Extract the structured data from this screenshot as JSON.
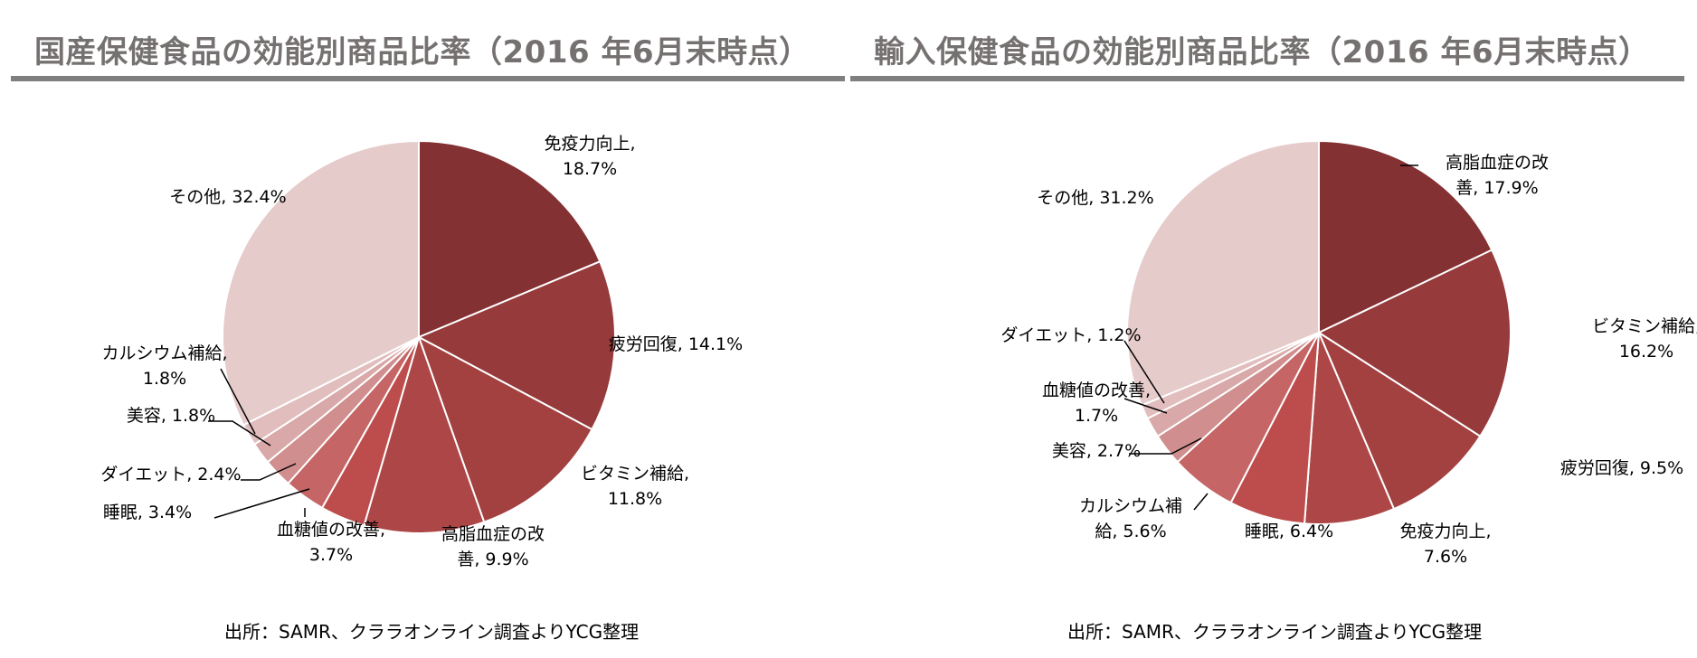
{
  "chart_data": [
    {
      "type": "pie",
      "title": "国産保健食品の効能別商品比率（2016 年6月末時点）",
      "source": "出所：SAMR、クララオンライン調査よりYCG整理",
      "slices": [
        {
          "name": "免疫力向上",
          "value": 18.7,
          "label": [
            "免疫力向上,",
            "18.7%"
          ],
          "color": "#843134"
        },
        {
          "name": "疲労回復",
          "value": 14.1,
          "label": [
            "疲労回復, 14.1%"
          ],
          "color": "#963a3b"
        },
        {
          "name": "ビタミン補給",
          "value": 11.8,
          "label": [
            "ビタミン補給,",
            "11.8%"
          ],
          "color": "#a34040"
        },
        {
          "name": "高脂血症の改善",
          "value": 9.9,
          "label": [
            "高脂血症の改",
            "善, 9.9%"
          ],
          "color": "#ad4646"
        },
        {
          "name": "血糖値の改善",
          "value": 3.7,
          "label": [
            "血糖値の改善,",
            "3.7%"
          ],
          "color": "#bd4d4d"
        },
        {
          "name": "睡眠",
          "value": 3.4,
          "label": [
            "睡眠, 3.4%"
          ],
          "color": "#c56565"
        },
        {
          "name": "ダイエット",
          "value": 2.4,
          "label": [
            "ダイエット, 2.4%"
          ],
          "color": "#d08e8e"
        },
        {
          "name": "美容",
          "value": 1.8,
          "label": [
            "美容, 1.8%"
          ],
          "color": "#d9a8a8"
        },
        {
          "name": "カルシウム補給",
          "value": 1.8,
          "label": [
            "カルシウム補給,",
            "1.8%"
          ],
          "color": "#e2bdbd"
        },
        {
          "name": "その他",
          "value": 32.4,
          "label": [
            "その他, 32.4%"
          ],
          "color": "#e6cbcb"
        }
      ]
    },
    {
      "type": "pie",
      "title": "輸入保健食品の効能別商品比率（2016 年6月末時点）",
      "source": "出所：SAMR、クララオンライン調査よりYCG整理",
      "slices": [
        {
          "name": "高脂血症の改善",
          "value": 17.9,
          "label": [
            "高脂血症の改",
            "善, 17.9%"
          ],
          "color": "#843134"
        },
        {
          "name": "ビタミン補給",
          "value": 16.2,
          "label": [
            "ビタミン補給,",
            "16.2%"
          ],
          "color": "#963a3b"
        },
        {
          "name": "疲労回復",
          "value": 9.5,
          "label": [
            "疲労回復, 9.5%"
          ],
          "color": "#a34040"
        },
        {
          "name": "免疫力向上",
          "value": 7.6,
          "label": [
            "免疫力向上,",
            "7.6%"
          ],
          "color": "#ad4646"
        },
        {
          "name": "睡眠",
          "value": 6.4,
          "label": [
            "睡眠, 6.4%"
          ],
          "color": "#bd4d4d"
        },
        {
          "name": "カルシウム補給",
          "value": 5.6,
          "label": [
            "カルシウム補",
            "給, 5.6%"
          ],
          "color": "#c56565"
        },
        {
          "name": "美容",
          "value": 2.7,
          "label": [
            "美容, 2.7%"
          ],
          "color": "#d08e8e"
        },
        {
          "name": "血糖値の改善",
          "value": 1.7,
          "label": [
            "血糖値の改善,",
            "1.7%"
          ],
          "color": "#d9a8a8"
        },
        {
          "name": "ダイエット",
          "value": 1.2,
          "label": [
            "ダイエット, 1.2%"
          ],
          "color": "#e2bdbd"
        },
        {
          "name": "その他",
          "value": 31.2,
          "label": [
            "その他, 31.2%"
          ],
          "color": "#e6cbcb"
        }
      ]
    }
  ]
}
